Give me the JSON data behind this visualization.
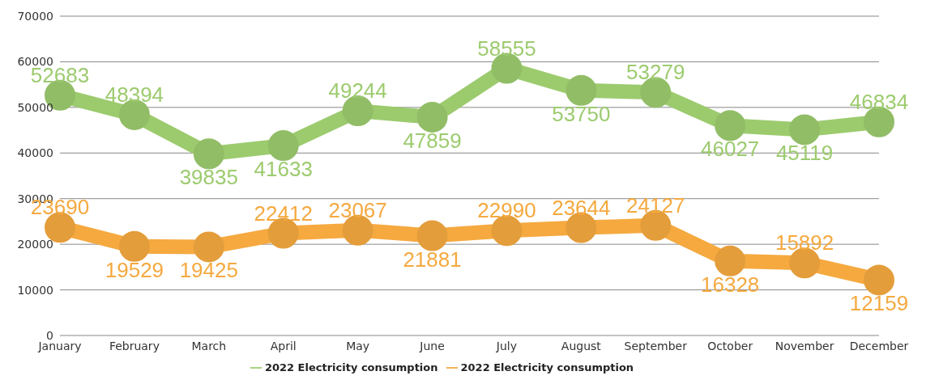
{
  "chart_data": {
    "type": "line",
    "categories": [
      "January",
      "February",
      "March",
      "April",
      "May",
      "June",
      "July",
      "August",
      "September",
      "October",
      "November",
      "December"
    ],
    "series": [
      {
        "name": "2022 Electricity consumption",
        "color": "#9ccb6e",
        "values": [
          52683,
          48394,
          39835,
          41633,
          49244,
          47859,
          58555,
          53750,
          53279,
          46027,
          45119,
          46834
        ]
      },
      {
        "name": "2022 Electricity consumption",
        "color": "#f5a93f",
        "values": [
          23690,
          19529,
          19425,
          22412,
          23067,
          21881,
          22990,
          23644,
          24127,
          16328,
          15892,
          12159
        ]
      }
    ],
    "ylim": [
      0,
      70000
    ],
    "yticks": [
      0,
      10000,
      20000,
      30000,
      40000,
      50000,
      60000,
      70000
    ],
    "grid": "y",
    "legend": "bottom",
    "marker": "circle",
    "line_style": "solid",
    "data_labels": true
  }
}
